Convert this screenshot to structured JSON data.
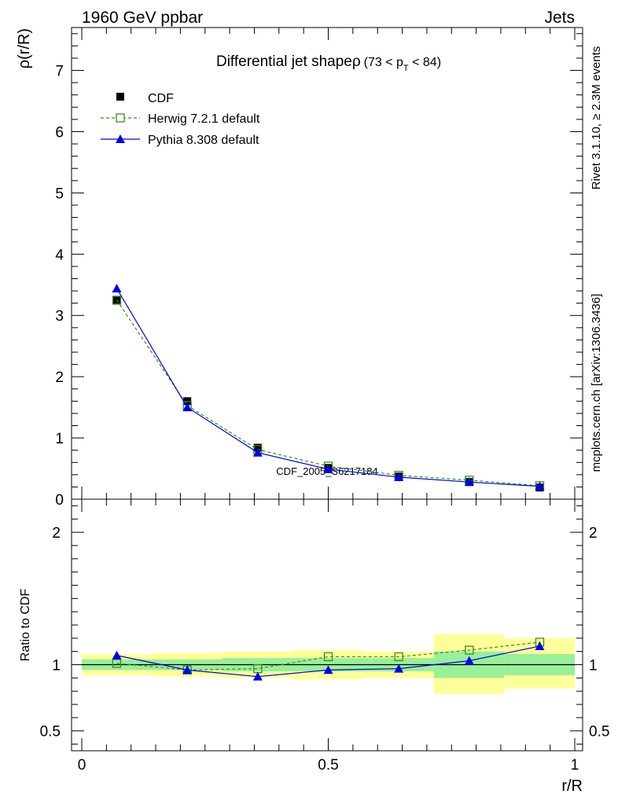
{
  "header": {
    "left": "1960 GeV ppbar",
    "right": "Jets"
  },
  "side_labels": {
    "rivet": "Rivet 3.1.10, ≥ 2.3M events",
    "mcplots": "mcplots.cern.ch [arXiv:1306.3436]"
  },
  "watermark": "CDF_2005_S6217184",
  "chart_data": [
    {
      "type": "line",
      "panel": "main",
      "title_main": "Differential jet shapeρ",
      "title_range_open": "(73 < p",
      "title_range_sub": "T",
      "title_range_close": " < 84)",
      "ylabel": "ρ(r/R)",
      "xlim": [
        0,
        1
      ],
      "ylim": [
        0,
        7.7
      ],
      "yticks": [
        0,
        1,
        2,
        3,
        4,
        5,
        6,
        7
      ],
      "ytick_labels": [
        "0",
        "1",
        "2",
        "3",
        "4",
        "5",
        "6",
        "7"
      ],
      "grid": false,
      "legend_placement": "top-left",
      "x": [
        0.071,
        0.214,
        0.357,
        0.5,
        0.643,
        0.786,
        0.929
      ],
      "series": [
        {
          "name": "CDF",
          "values": [
            3.24,
            1.6,
            0.84,
            0.51,
            0.37,
            0.28,
            0.19
          ],
          "color": "#000000",
          "marker": "filled-square"
        },
        {
          "name": "Herwig 7.2.1 default",
          "values": [
            3.25,
            1.53,
            0.81,
            0.54,
            0.39,
            0.31,
            0.22
          ],
          "color": "#3a8c1f",
          "marker": "open-square",
          "dash": "dashed"
        },
        {
          "name": "Pythia 8.308 default",
          "values": [
            3.44,
            1.5,
            0.76,
            0.49,
            0.36,
            0.28,
            0.21
          ],
          "color": "#0000ee",
          "marker": "filled-triangle"
        }
      ]
    },
    {
      "type": "line",
      "panel": "ratio",
      "ylabel": "Ratio to CDF",
      "xlabel": "r/R",
      "xlim": [
        0,
        1
      ],
      "ylim": [
        0.35,
        2.25
      ],
      "xticks": [
        0,
        0.5,
        1
      ],
      "xtick_labels": [
        "0",
        "0.5",
        "1"
      ],
      "yticks": [
        0.5,
        1,
        2
      ],
      "ytick_labels": [
        "0.5",
        "1",
        "2"
      ],
      "x": [
        0.071,
        0.214,
        0.357,
        0.5,
        0.643,
        0.786,
        0.929
      ],
      "bin_edges": [
        0,
        0.143,
        0.286,
        0.429,
        0.571,
        0.714,
        0.857,
        1.0
      ],
      "band_inner": {
        "low": [
          0.96,
          0.96,
          0.95,
          0.95,
          0.95,
          0.9,
          0.92
        ],
        "high": [
          1.04,
          1.04,
          1.05,
          1.05,
          1.05,
          1.1,
          1.08
        ],
        "color": "#99f099"
      },
      "band_outer": {
        "low": [
          0.92,
          0.91,
          0.9,
          0.89,
          0.9,
          0.78,
          0.82
        ],
        "high": [
          1.08,
          1.09,
          1.1,
          1.11,
          1.1,
          1.23,
          1.2
        ],
        "color": "#ffff99"
      },
      "series": [
        {
          "name": "Herwig 7.2.1 default",
          "values": [
            1.01,
            0.96,
            0.97,
            1.06,
            1.06,
            1.11,
            1.17
          ],
          "color": "#3a8c1f",
          "marker": "open-square",
          "dash": "dashed"
        },
        {
          "name": "Pythia 8.308 default",
          "values": [
            1.07,
            0.96,
            0.91,
            0.96,
            0.97,
            1.03,
            1.14
          ],
          "color": "#0000ee",
          "marker": "filled-triangle"
        }
      ]
    }
  ]
}
